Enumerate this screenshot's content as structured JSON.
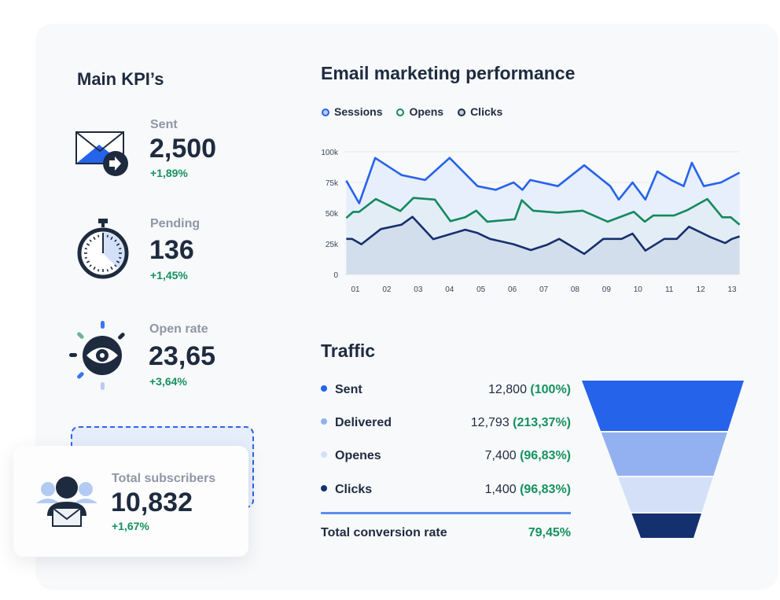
{
  "kpis": {
    "title": "Main KPI’s",
    "items": [
      {
        "label": "Sent",
        "value": "2,500",
        "delta": "+1,89%",
        "icon": "envelope-send-icon"
      },
      {
        "label": "Pending",
        "value": "136",
        "delta": "+1,45%",
        "icon": "stopwatch-icon"
      },
      {
        "label": "Open rate",
        "value": "23,65",
        "delta": "+3,64%",
        "icon": "eye-icon"
      },
      {
        "label": "Total subscribers",
        "value": "10,832",
        "delta": "+1,67%",
        "icon": "subscribers-icon"
      }
    ]
  },
  "chart_data": {
    "type": "area",
    "title": "Email marketing performance",
    "legend_position": "top-left",
    "grid": true,
    "ylim": [
      0,
      100000
    ],
    "y_ticks": [
      "0",
      "25k",
      "50k",
      "75k",
      "100k"
    ],
    "y_tick_values": [
      0,
      25000,
      50000,
      75000,
      100000
    ],
    "x_ticks": [
      "01",
      "02",
      "03",
      "04",
      "05",
      "06",
      "07",
      "08",
      "09",
      "10",
      "11",
      "12",
      "13"
    ],
    "xlim": [
      0.7,
      13.25
    ],
    "series": [
      {
        "name": "Sessions",
        "color": "#2563eb",
        "fill": "#e7eefc",
        "points": [
          [
            0.71,
            76500
          ],
          [
            1.12,
            58000
          ],
          [
            1.63,
            95000
          ],
          [
            2.47,
            81000
          ],
          [
            3.22,
            77000
          ],
          [
            4.0,
            95000
          ],
          [
            4.89,
            72000
          ],
          [
            5.47,
            69000
          ],
          [
            6.04,
            75000
          ],
          [
            6.32,
            69000
          ],
          [
            6.57,
            77000
          ],
          [
            7.45,
            72000
          ],
          [
            8.29,
            89000
          ],
          [
            9.12,
            72000
          ],
          [
            9.39,
            61000
          ],
          [
            9.83,
            75000
          ],
          [
            10.24,
            61000
          ],
          [
            10.62,
            84000
          ],
          [
            11.06,
            77000
          ],
          [
            11.46,
            72000
          ],
          [
            11.72,
            91000
          ],
          [
            12.1,
            72000
          ],
          [
            12.65,
            75000
          ],
          [
            13.24,
            83000
          ]
        ]
      },
      {
        "name": "Opens",
        "color": "#128a5c",
        "fill": "#e1ecf5",
        "points": [
          [
            0.71,
            46000
          ],
          [
            0.93,
            51000
          ],
          [
            1.12,
            51000
          ],
          [
            1.65,
            61500
          ],
          [
            2.43,
            51700
          ],
          [
            2.85,
            62400
          ],
          [
            3.53,
            61000
          ],
          [
            4.03,
            43400
          ],
          [
            4.5,
            46600
          ],
          [
            4.85,
            52000
          ],
          [
            5.2,
            43000
          ],
          [
            6.08,
            45000
          ],
          [
            6.3,
            60500
          ],
          [
            6.66,
            52000
          ],
          [
            7.45,
            50400
          ],
          [
            8.24,
            52000
          ],
          [
            9.04,
            43000
          ],
          [
            9.87,
            51000
          ],
          [
            10.22,
            43000
          ],
          [
            10.49,
            48000
          ],
          [
            11.15,
            48000
          ],
          [
            11.59,
            52600
          ],
          [
            12.21,
            61500
          ],
          [
            12.69,
            46600
          ],
          [
            12.96,
            46600
          ],
          [
            13.24,
            40600
          ]
        ]
      },
      {
        "name": "Clicks",
        "color": "#172f6e",
        "fill": "#cfdbe9",
        "points": [
          [
            0.71,
            29000
          ],
          [
            0.89,
            29000
          ],
          [
            1.19,
            24600
          ],
          [
            1.81,
            37000
          ],
          [
            2.47,
            40600
          ],
          [
            2.82,
            47000
          ],
          [
            3.48,
            28800
          ],
          [
            4.5,
            36500
          ],
          [
            4.89,
            33800
          ],
          [
            5.29,
            29000
          ],
          [
            6.04,
            24600
          ],
          [
            6.59,
            19900
          ],
          [
            7.1,
            24100
          ],
          [
            7.49,
            29000
          ],
          [
            8.29,
            16700
          ],
          [
            8.9,
            29000
          ],
          [
            9.48,
            29000
          ],
          [
            9.83,
            33300
          ],
          [
            10.24,
            19400
          ],
          [
            10.84,
            29000
          ],
          [
            11.24,
            29000
          ],
          [
            11.63,
            38900
          ],
          [
            12.3,
            30600
          ],
          [
            12.78,
            25600
          ],
          [
            13.0,
            29000
          ],
          [
            13.24,
            31000
          ]
        ]
      }
    ]
  },
  "traffic": {
    "title": "Traffic",
    "rows": [
      {
        "label": "Sent",
        "value": "12,800",
        "pct": "(100%)",
        "color": "#2563eb"
      },
      {
        "label": "Delivered",
        "value": "12,793",
        "pct": "(213,37%)",
        "color": "#93b1f0"
      },
      {
        "label": "Openes",
        "value": "7,400",
        "pct": "(96,83%)",
        "color": "#d3e0f8"
      },
      {
        "label": "Clicks",
        "value": "1,400",
        "pct": "(96,83%)",
        "color": "#14306f"
      }
    ],
    "total_label": "Total conversion rate",
    "total_value": "79,45%"
  }
}
